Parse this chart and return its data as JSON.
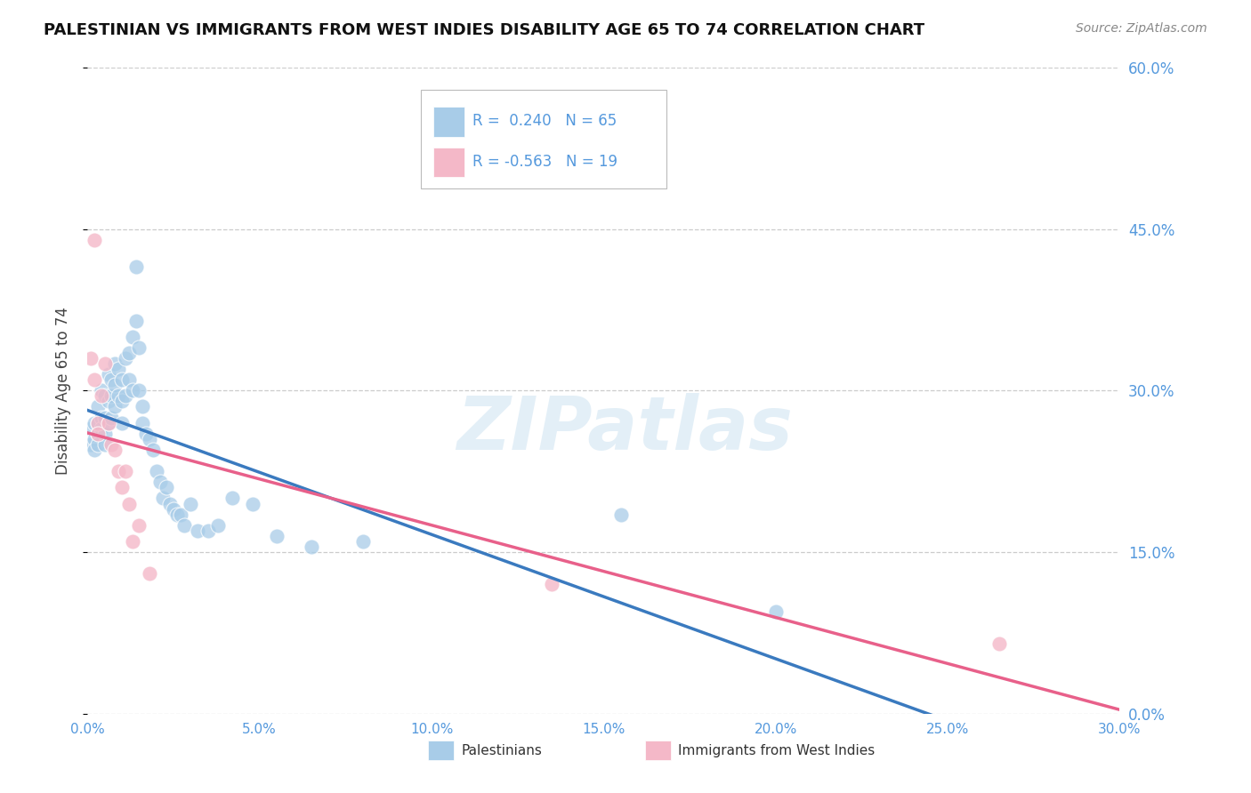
{
  "title": "PALESTINIAN VS IMMIGRANTS FROM WEST INDIES DISABILITY AGE 65 TO 74 CORRELATION CHART",
  "source": "Source: ZipAtlas.com",
  "ylabel": "Disability Age 65 to 74",
  "xlim": [
    0.0,
    0.3
  ],
  "ylim": [
    0.0,
    0.6
  ],
  "yticks": [
    0.0,
    0.15,
    0.3,
    0.45,
    0.6
  ],
  "xticks": [
    0.0,
    0.05,
    0.1,
    0.15,
    0.2,
    0.25,
    0.3
  ],
  "blue_R": 0.24,
  "blue_N": 65,
  "pink_R": -0.563,
  "pink_N": 19,
  "blue_color": "#a8cce8",
  "pink_color": "#f4b8c8",
  "blue_line_color": "#3a7abf",
  "pink_line_color": "#e8608a",
  "watermark": "ZIPatlas",
  "legend_blue_label": "Palestinians",
  "legend_pink_label": "Immigrants from West Indies",
  "blue_x": [
    0.001,
    0.001,
    0.002,
    0.002,
    0.002,
    0.003,
    0.003,
    0.003,
    0.003,
    0.004,
    0.004,
    0.004,
    0.005,
    0.005,
    0.005,
    0.005,
    0.006,
    0.006,
    0.006,
    0.007,
    0.007,
    0.007,
    0.008,
    0.008,
    0.008,
    0.009,
    0.009,
    0.01,
    0.01,
    0.01,
    0.011,
    0.011,
    0.012,
    0.012,
    0.013,
    0.013,
    0.014,
    0.014,
    0.015,
    0.015,
    0.016,
    0.016,
    0.017,
    0.018,
    0.019,
    0.02,
    0.021,
    0.022,
    0.023,
    0.024,
    0.025,
    0.026,
    0.027,
    0.028,
    0.03,
    0.032,
    0.035,
    0.038,
    0.042,
    0.048,
    0.055,
    0.065,
    0.08,
    0.155,
    0.2
  ],
  "blue_y": [
    0.265,
    0.25,
    0.27,
    0.255,
    0.245,
    0.285,
    0.27,
    0.26,
    0.25,
    0.3,
    0.275,
    0.265,
    0.295,
    0.275,
    0.26,
    0.25,
    0.315,
    0.29,
    0.27,
    0.31,
    0.295,
    0.275,
    0.325,
    0.305,
    0.285,
    0.32,
    0.295,
    0.31,
    0.29,
    0.27,
    0.33,
    0.295,
    0.335,
    0.31,
    0.35,
    0.3,
    0.415,
    0.365,
    0.34,
    0.3,
    0.285,
    0.27,
    0.26,
    0.255,
    0.245,
    0.225,
    0.215,
    0.2,
    0.21,
    0.195,
    0.19,
    0.185,
    0.185,
    0.175,
    0.195,
    0.17,
    0.17,
    0.175,
    0.2,
    0.195,
    0.165,
    0.155,
    0.16,
    0.185,
    0.095
  ],
  "pink_x": [
    0.001,
    0.002,
    0.002,
    0.003,
    0.003,
    0.004,
    0.005,
    0.006,
    0.007,
    0.008,
    0.009,
    0.01,
    0.011,
    0.012,
    0.013,
    0.015,
    0.018,
    0.135,
    0.265
  ],
  "pink_y": [
    0.33,
    0.44,
    0.31,
    0.27,
    0.26,
    0.295,
    0.325,
    0.27,
    0.25,
    0.245,
    0.225,
    0.21,
    0.225,
    0.195,
    0.16,
    0.175,
    0.13,
    0.12,
    0.065
  ],
  "blue_line_x0": 0.0,
  "blue_line_x1": 0.265,
  "blue_line_x_dash0": 0.265,
  "blue_line_x_dash1": 0.3,
  "pink_line_x0": 0.0,
  "pink_line_x1": 0.3
}
